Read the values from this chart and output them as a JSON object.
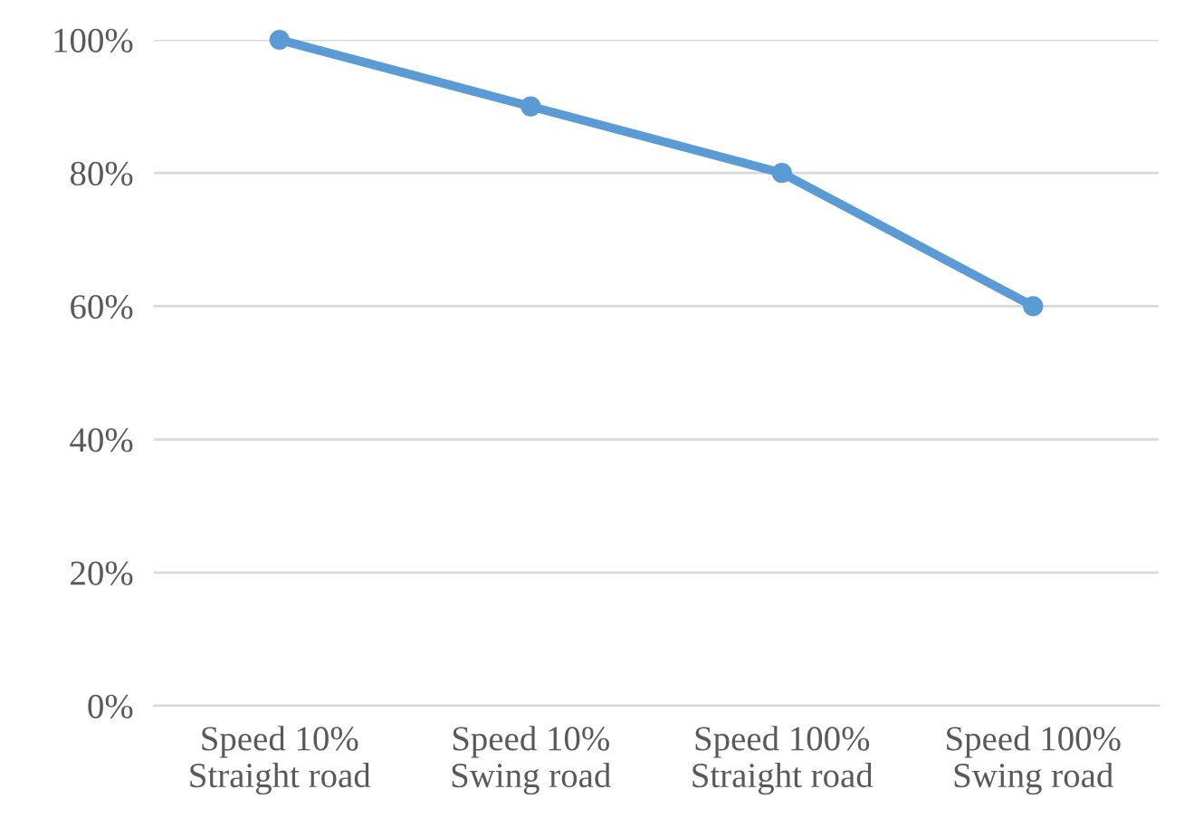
{
  "chart_data": {
    "type": "line",
    "categories": [
      "Speed 10%\nStraight road",
      "Speed 10%\nSwing road",
      "Speed 100%\nStraight road",
      "Speed 100%\nSwing road"
    ],
    "series": [
      {
        "color": "#5b9bd5",
        "values": [
          100,
          90,
          80,
          60
        ]
      }
    ],
    "ylim": [
      0,
      100
    ],
    "yticks": [
      {
        "value": 0,
        "label": "0%"
      },
      {
        "value": 20,
        "label": "20%"
      },
      {
        "value": 40,
        "label": "40%"
      },
      {
        "value": 60,
        "label": "60%"
      },
      {
        "value": 80,
        "label": "80%"
      },
      {
        "value": 100,
        "label": "100%"
      }
    ],
    "grid": "y",
    "marker": "circle",
    "line_style": "solid"
  }
}
